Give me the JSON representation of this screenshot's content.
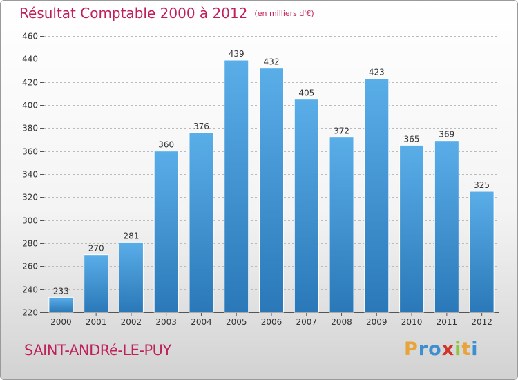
{
  "title": "Résultat Comptable 2000 à 2012",
  "subtitle": "(en milliers d'€)",
  "commune": "SAINT-ANDRé-LE-PUY",
  "brand": {
    "letters": [
      "P",
      "r",
      "o",
      "x",
      "i",
      "t",
      "i"
    ],
    "colors": [
      "#e8a33a",
      "#3c8fd0",
      "#3c8fd0",
      "#d0352c",
      "#8cc63e",
      "#e8a33a",
      "#3c8fd0"
    ]
  },
  "colors": {
    "bar_light": "#5aaee8",
    "bar_dark": "#2a78b8",
    "title": "#c0205a",
    "grid": "#bbbbbb"
  },
  "chart_data": {
    "type": "bar",
    "title": "Résultat Comptable 2000 à 2012",
    "subtitle": "(en milliers d'€)",
    "categories": [
      "2000",
      "2001",
      "2002",
      "2003",
      "2004",
      "2005",
      "2006",
      "2007",
      "2008",
      "2009",
      "2010",
      "2011",
      "2012"
    ],
    "values": [
      233,
      270,
      281,
      360,
      376,
      439,
      432,
      405,
      372,
      423,
      365,
      369,
      325
    ],
    "xlabel": "",
    "ylabel": "",
    "ylim": [
      220,
      460
    ],
    "yticks": [
      220,
      240,
      260,
      280,
      300,
      320,
      340,
      360,
      380,
      400,
      420,
      440,
      460
    ],
    "grid": true
  }
}
